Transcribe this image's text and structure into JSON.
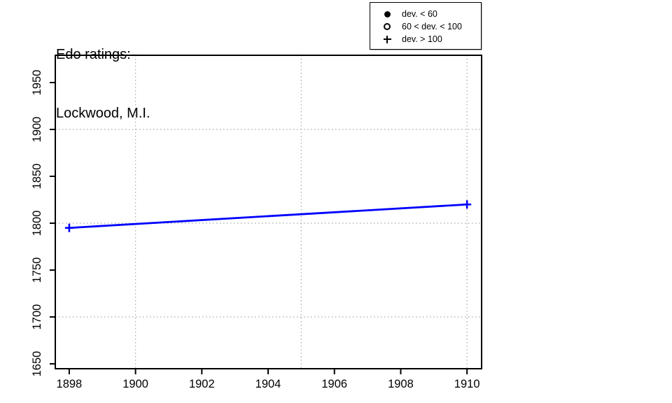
{
  "title": {
    "line1": "Edo ratings:",
    "line2": "Lockwood, M.I."
  },
  "legend": {
    "items": [
      {
        "symbol": "filled-circle-icon",
        "label": "dev. < 60"
      },
      {
        "symbol": "open-circle-icon",
        "label": "60 < dev. < 100"
      },
      {
        "symbol": "plus-icon",
        "label": "dev. > 100"
      }
    ]
  },
  "chart_data": {
    "type": "line",
    "title": "Edo ratings: Lockwood, M.I.",
    "xlabel": "",
    "ylabel": "",
    "xlim": [
      1897.58,
      1910.44
    ],
    "ylim": [
      1644.8,
      1979.1
    ],
    "xticks": [
      1898,
      1900,
      1902,
      1904,
      1906,
      1908,
      1910
    ],
    "yticks": [
      1650,
      1700,
      1750,
      1800,
      1850,
      1900,
      1950
    ],
    "grid": {
      "horizontal_values": [
        1700,
        1800,
        1900
      ],
      "vertical_values": [
        1900,
        1905,
        1910
      ],
      "style": "dotted"
    },
    "legend_position": "top-right",
    "series": [
      {
        "name": "Edo rating",
        "color": "#0000ff",
        "marker": "plus",
        "marker_meaning": "dev. > 100",
        "points": [
          {
            "x": 1898,
            "y": 1795
          },
          {
            "x": 1910,
            "y": 1820
          }
        ]
      }
    ]
  },
  "colors": {
    "line": "#0000ff",
    "grid": "#a8a8a8",
    "axis": "#000000",
    "background": "#ffffff"
  }
}
